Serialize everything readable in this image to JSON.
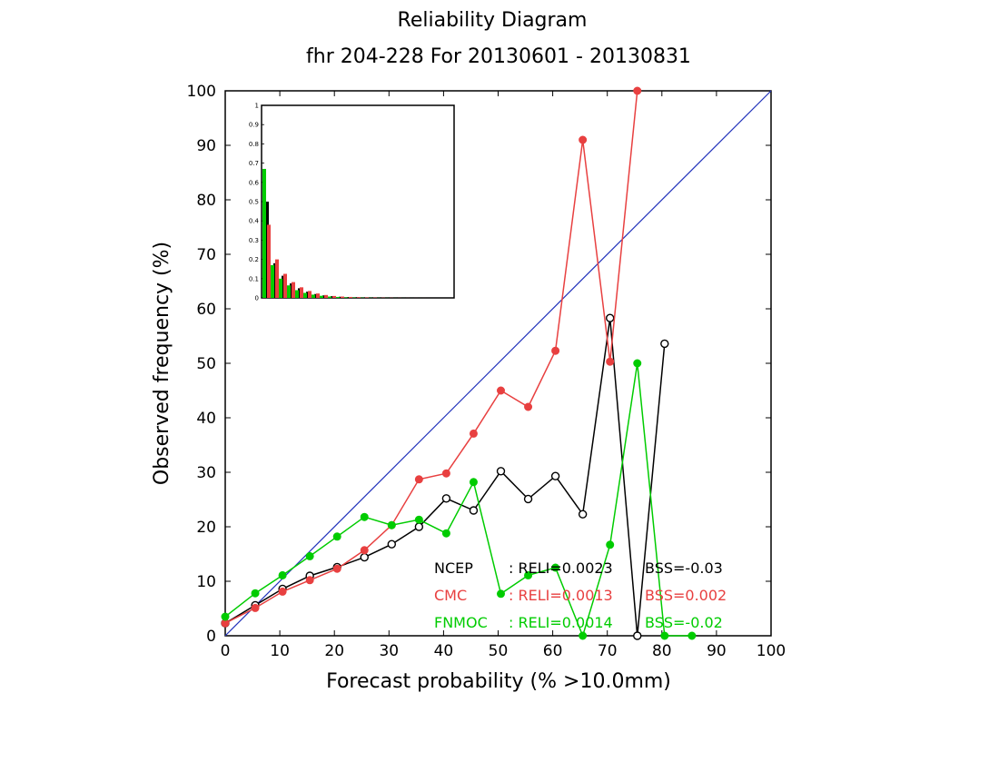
{
  "chart_data": {
    "type": "line",
    "title": "Reliability Diagram",
    "subtitle": "fhr 204-228 For 20130601 - 20130831",
    "xlabel": "Forecast probability (% >10.0mm)",
    "ylabel": "Observed frequency (%)",
    "xlim": [
      0,
      100
    ],
    "ylim": [
      0,
      100
    ],
    "xticks": [
      "0",
      "10",
      "20",
      "30",
      "40",
      "50",
      "60",
      "70",
      "80",
      "90",
      "100"
    ],
    "yticks": [
      "0",
      "10",
      "20",
      "30",
      "40",
      "50",
      "60",
      "70",
      "80",
      "90",
      "100"
    ],
    "diagonal_color": "#2233bb",
    "series": [
      {
        "name": "NCEP",
        "color": "#000000",
        "marker": "open-circle",
        "x": [
          0,
          5.5,
          10.5,
          15.5,
          20.5,
          25.5,
          30.5,
          35.5,
          40.5,
          45.5,
          50.5,
          55.5,
          60.5,
          65.5,
          70.5,
          75.5,
          80.5
        ],
        "y": [
          2.3,
          5.6,
          8.6,
          11.0,
          12.6,
          14.4,
          16.8,
          20.0,
          25.2,
          23.0,
          30.2,
          25.1,
          29.3,
          22.3,
          58.3,
          0,
          53.6
        ]
      },
      {
        "name": "CMC",
        "color": "#e84040",
        "marker": "filled-circle",
        "x": [
          0,
          5.5,
          10.5,
          15.5,
          20.5,
          25.5,
          30.5,
          35.5,
          40.5,
          45.5,
          50.5,
          55.5,
          60.5,
          65.5,
          70.5,
          75.5
        ],
        "y": [
          2.3,
          5.1,
          8.1,
          10.2,
          12.3,
          15.7,
          20.3,
          28.7,
          29.8,
          37.1,
          45.0,
          42.0,
          52.3,
          91.0,
          50.3,
          100
        ]
      },
      {
        "name": "FNMOC",
        "color": "#00cc00",
        "marker": "filled-circle",
        "x": [
          0,
          5.5,
          10.5,
          15.5,
          20.5,
          25.5,
          30.5,
          35.5,
          40.5,
          45.5,
          50.5,
          55.5,
          60.5,
          65.5,
          70.5,
          75.5,
          80.5,
          85.5
        ],
        "y": [
          3.5,
          7.8,
          11.1,
          14.6,
          18.2,
          21.8,
          20.3,
          21.3,
          18.8,
          28.2,
          7.7,
          11.1,
          12.5,
          0,
          16.7,
          50.0,
          0,
          0
        ]
      }
    ],
    "stats": [
      {
        "model": "NCEP",
        "reli": ": RELI=0.0023",
        "bss": "BSS=-0.03",
        "color": "#000000"
      },
      {
        "model": "CMC",
        "reli": ": RELI=0.0013",
        "bss": "BSS=0.002",
        "color": "#e84040"
      },
      {
        "model": "FNMOC",
        "reli": ": RELI=0.0014",
        "bss": "BSS=-0.02",
        "color": "#00cc00"
      }
    ],
    "inset": {
      "type": "bar",
      "ylim": [
        0,
        1
      ],
      "yticks": [
        "0",
        "0.1",
        "0.2",
        "0.3",
        "0.4",
        "0.5",
        "0.6",
        "0.7",
        "0.8",
        "0.9",
        "1"
      ],
      "series": [
        {
          "name": "NCEP",
          "color": "#000000",
          "values": [
            0.5,
            0.18,
            0.115,
            0.075,
            0.05,
            0.032,
            0.02,
            0.013,
            0.009,
            0.006,
            0.004,
            0.003,
            0.002,
            0.0015,
            0.001,
            0.0008,
            0.0005,
            0.0003,
            0.0002,
            0.0001
          ]
        },
        {
          "name": "CMC",
          "color": "#e84040",
          "values": [
            0.38,
            0.2,
            0.125,
            0.082,
            0.055,
            0.036,
            0.023,
            0.015,
            0.01,
            0.007,
            0.005,
            0.0035,
            0.0025,
            0.0018,
            0.0012,
            0.0008,
            0.0005,
            0.0003,
            0.0002,
            0.0001
          ]
        },
        {
          "name": "FNMOC",
          "color": "#00cc00",
          "values": [
            0.67,
            0.17,
            0.1,
            0.065,
            0.04,
            0.026,
            0.017,
            0.011,
            0.007,
            0.005,
            0.003,
            0.002,
            0.0015,
            0.001,
            0.0007,
            0.0005,
            0.0003,
            0.0002,
            0.0001,
            0.0001
          ]
        }
      ]
    }
  }
}
